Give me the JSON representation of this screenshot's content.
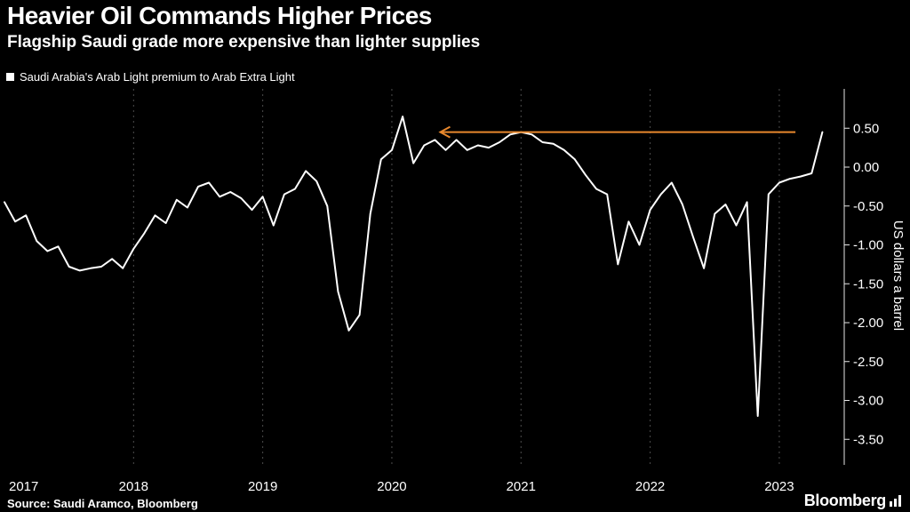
{
  "chart_data": {
    "type": "line",
    "title": "Heavier Oil Commands Higher Prices",
    "subtitle": "Flagship Saudi grade more expensive than lighter supplies",
    "ylabel": "US dollars a barrel",
    "ylim": [
      -3.5,
      0.5
    ],
    "grid": "vertical-dashed-yearly",
    "legend_position": "top-left",
    "x_start": "2017-01",
    "x_end": "2023-05",
    "frequency": "monthly",
    "yticks": [
      0.5,
      0.0,
      -0.5,
      -1.0,
      -1.5,
      -2.0,
      -2.5,
      -3.0,
      -3.5
    ],
    "ytick_labels": [
      "0.50",
      "0.00",
      "-0.50",
      "-1.00",
      "-1.50",
      "-2.00",
      "-2.50",
      "-3.00",
      "-3.50"
    ],
    "years": [
      {
        "label": "2017",
        "month_index": 0,
        "gridline": false
      },
      {
        "label": "2018",
        "month_index": 12,
        "gridline": true
      },
      {
        "label": "2019",
        "month_index": 24,
        "gridline": true
      },
      {
        "label": "2020",
        "month_index": 36,
        "gridline": true
      },
      {
        "label": "2021",
        "month_index": 48,
        "gridline": true
      },
      {
        "label": "2022",
        "month_index": 60,
        "gridline": true
      },
      {
        "label": "2023",
        "month_index": 72,
        "gridline": true
      }
    ],
    "series": [
      {
        "name": "Saudi Arabia's Arab Light premium to Arab Extra Light",
        "color": "#ffffff",
        "values": [
          -0.45,
          -0.7,
          -0.62,
          -0.95,
          -1.08,
          -1.02,
          -1.28,
          -1.33,
          -1.3,
          -1.28,
          -1.18,
          -1.3,
          -1.05,
          -0.85,
          -0.62,
          -0.72,
          -0.42,
          -0.52,
          -0.25,
          -0.2,
          -0.38,
          -0.32,
          -0.4,
          -0.55,
          -0.38,
          -0.75,
          -0.35,
          -0.28,
          -0.05,
          -0.18,
          -0.5,
          -1.6,
          -2.1,
          -1.9,
          -0.6,
          0.1,
          0.22,
          0.65,
          0.05,
          0.28,
          0.35,
          0.22,
          0.35,
          0.22,
          0.28,
          0.25,
          0.32,
          0.42,
          0.45,
          0.42,
          0.32,
          0.3,
          0.22,
          0.1,
          -0.1,
          -0.28,
          -0.35,
          -1.25,
          -0.7,
          -1.0,
          -0.55,
          -0.35,
          -0.2,
          -0.48,
          -0.9,
          -1.3,
          -0.6,
          -0.48,
          -0.75,
          -0.45,
          -3.2,
          -0.35,
          -0.2,
          -0.15,
          -0.12,
          -0.08,
          0.45
        ]
      }
    ],
    "annotation_arrow": {
      "color": "#e8882d",
      "level": 0.45,
      "head_month_index": 40.5,
      "tail_month_index": 73.5,
      "direction": "left"
    }
  },
  "footer": {
    "source": "Source: Saudi Aramco, Bloomberg",
    "brand": "Bloomberg"
  }
}
